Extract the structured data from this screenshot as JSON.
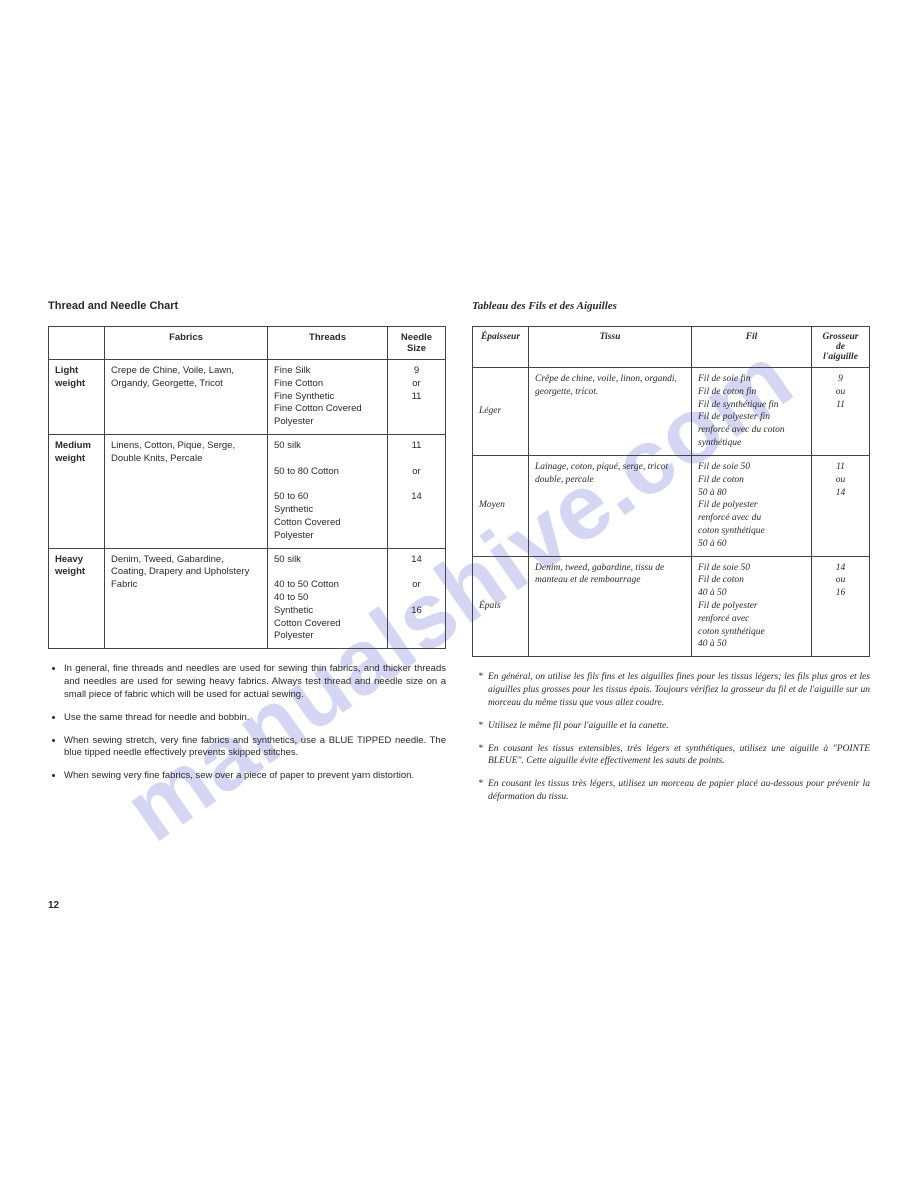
{
  "watermark": "manualshive.com",
  "page_number": "12",
  "left": {
    "title": "Thread and Needle Chart",
    "headers": [
      "",
      "Fabrics",
      "Threads",
      "Needle Size"
    ],
    "rows": [
      {
        "weight": "Light weight",
        "fabrics": "Crepe de Chine, Voile, Lawn, Organdy, Georgette, Tricot",
        "threads": "Fine Silk\nFine Cotton\nFine Synthetic\nFine Cotton Covered\n   Polyester",
        "needle": "9\nor\n11"
      },
      {
        "weight": "Medium weight",
        "fabrics": "Linens, Cotton, Pique, Serge, Double Knits, Percale",
        "threads": "50 silk\n\n50 to 80 Cotton\n\n50 to 60\n   Synthetic\n   Cotton Covered\n   Polyester",
        "needle": "11\n\nor\n\n14"
      },
      {
        "weight": "Heavy weight",
        "fabrics": "Denim, Tweed, Gabardine, Coating, Drapery and Upholstery Fabric",
        "threads": "50 silk\n\n40 to 50 Cotton\n40 to 50\n   Synthetic\n   Cotton Covered\n   Polyester",
        "needle": "14\n\nor\n\n16"
      }
    ],
    "notes": [
      "In general, fine threads and needles are used for sewing thin fabrics, and thicker threads and needles are used for sewing heavy fabrics. Always test thread and needle size on a small piece of fabric which will be used for actual sewing.",
      "Use the same thread for needle and bobbin.",
      "When sewing stretch, very fine fabrics and synthetics, use a BLUE TIPPED needle. The blue tipped needle effectively prevents skipped stitches.",
      "When sewing very fine fabrics, sew over a piece of paper to prevent yarn distortion."
    ]
  },
  "right": {
    "title": "Tableau des Fils et des Aiguilles",
    "headers": [
      "Épaisseur",
      "Tissu",
      "Fil",
      "Grosseur de l'aiguille"
    ],
    "rows": [
      {
        "weight": "Léger",
        "fabrics": "Crêpe de chine, voile, linon, organdi, georgette, tricot.",
        "threads": "Fil de soie fin\nFil de coton fin\nFil de synthétique fin\nFil de polyester fin\nrenforcé avec du coton\nsynthétique",
        "needle": "9\nou\n11"
      },
      {
        "weight": "Moyen",
        "fabrics": "Lainage, coton, piqué, serge, tricot double, percale",
        "threads": "Fil de soie 50\nFil de coton\n50 à 80\nFil de polyester\nrenforcé avec du\ncoton synthétique\n50 à 60",
        "needle": "11\nou\n14"
      },
      {
        "weight": "Épais",
        "fabrics": "Denim, tweed, gabardine, tissu de manteau et de rembourrage",
        "threads": "Fil de soie 50\nFil de coton\n40 à 50\nFil de polyester\nrenforcé avec\ncoton synthétique\n40 à 50",
        "needle": "14\nou\n16"
      }
    ],
    "notes": [
      "En général, on utilise les fils fins et les aiguilles fines pour les tissus légers; les fils plus gros et les aiguilles plus grosses pour les tissus épais. Toujours vérifiez la grosseur du fil et de l'aiguille sur un morceau du même tissu que vous allez coudre.",
      "Utilisez le même fil pour l'aiguille et la canette.",
      "En cousant les tissus extensibles, très légers et synthétiques, utilisez une aiguille à \"POINTE BLEUE\". Cette aiguille évite effectivement les sauts de points.",
      "En cousant les tissus très légers, utilisez un morceau de papier placé au-dessous pour prévenir la déformation du tissu."
    ]
  }
}
